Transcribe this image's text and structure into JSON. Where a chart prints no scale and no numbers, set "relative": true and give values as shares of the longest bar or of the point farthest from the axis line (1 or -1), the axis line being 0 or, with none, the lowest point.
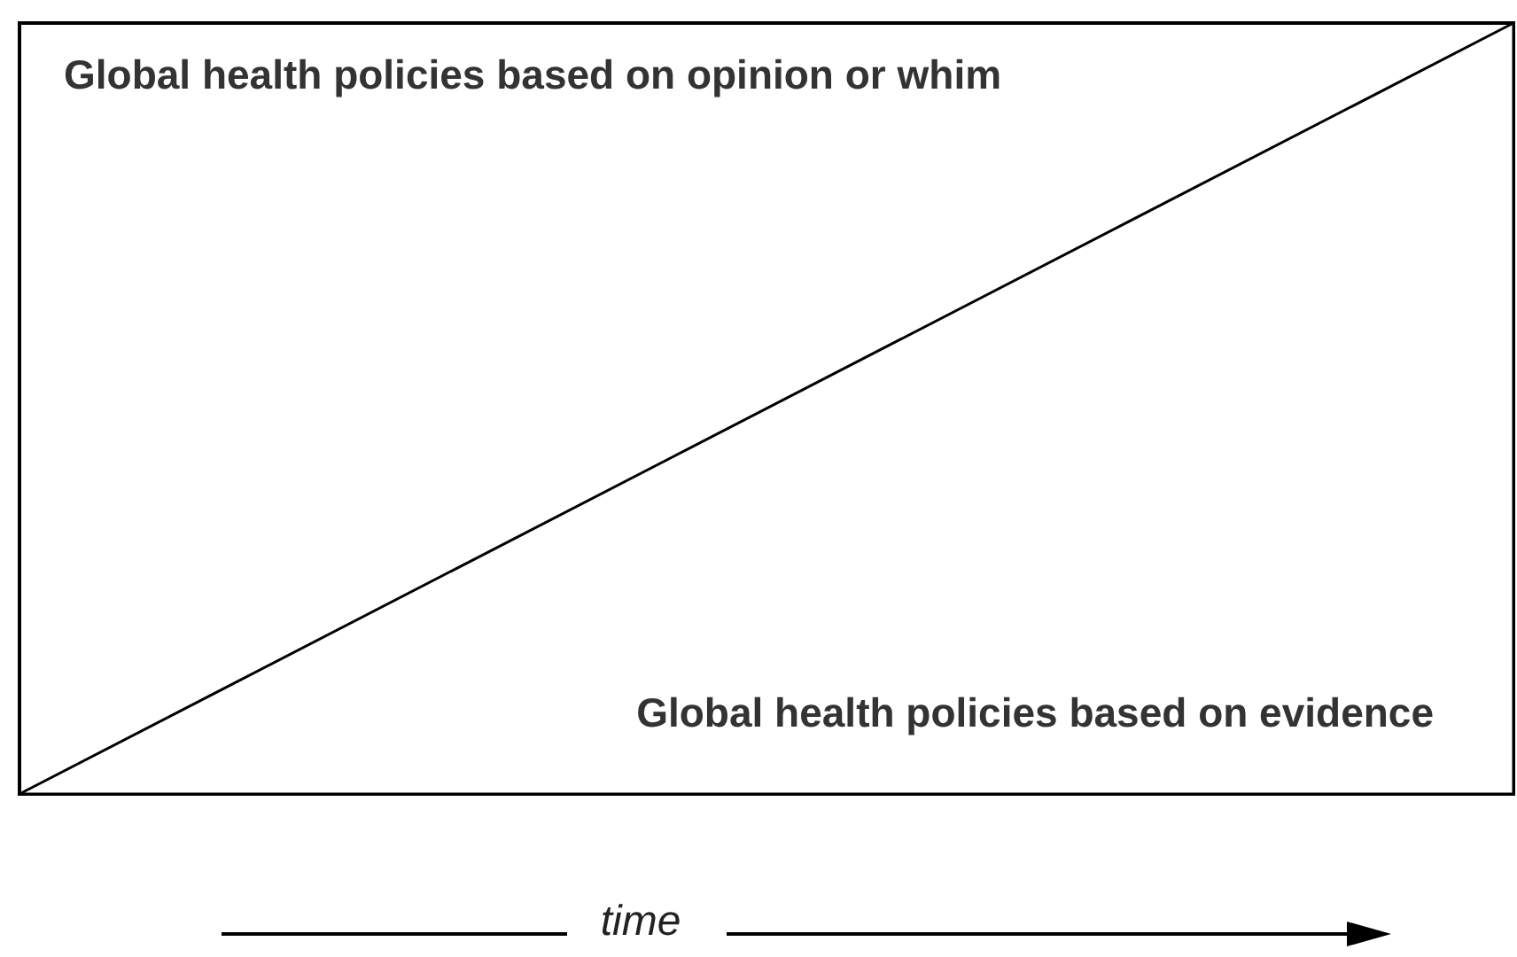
{
  "chart_data": {
    "type": "area",
    "relative": true,
    "xlabel": "time",
    "categories": [
      null,
      null
    ],
    "series": [
      {
        "name": "Global health policies based on evidence",
        "color": "#ffffff",
        "values": [
          0,
          1
        ]
      }
    ],
    "annotations": [
      "Global health policies based on opinion or whim"
    ],
    "grid": false,
    "legend": false
  }
}
